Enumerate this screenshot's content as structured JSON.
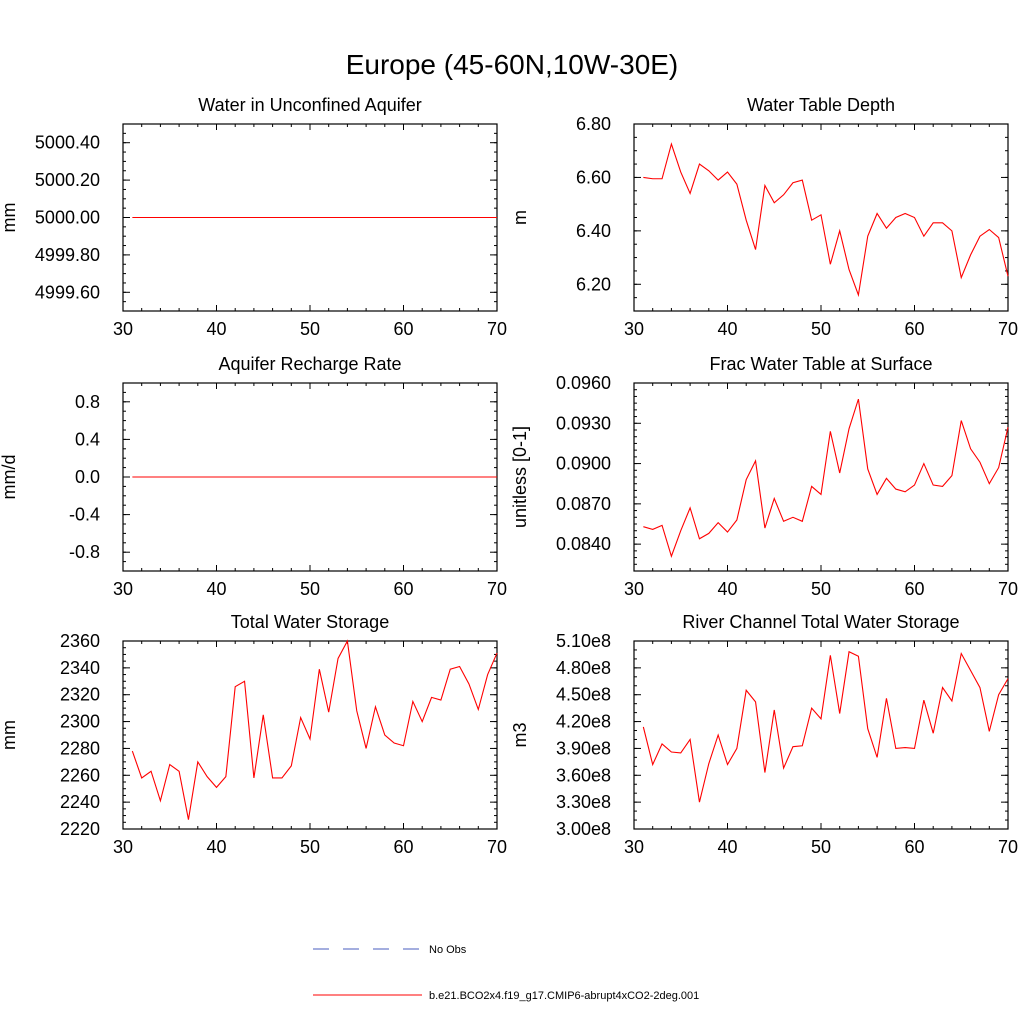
{
  "figure": {
    "title": "Europe (45-60N,10W-30E)",
    "colors": {
      "model": "#ff0000",
      "obs": "#4a5dbf",
      "axis": "#000000",
      "background": "#ffffff"
    }
  },
  "legend": {
    "placement": "bottom-center",
    "entries": [
      {
        "label": "No Obs",
        "style": "dashed",
        "color": "#4a5dbf"
      },
      {
        "label": "b.e21.BCO2x4.f19_g17.CMIP6-abrupt4xCO2-2deg.001",
        "style": "solid",
        "color": "#ff0000"
      }
    ]
  },
  "chart_data": [
    {
      "id": "aquifer",
      "type": "line",
      "title": "Water in Unconfined Aquifer",
      "xlabel": "",
      "ylabel": "mm",
      "xlim": [
        30,
        70
      ],
      "ylim": [
        4999.5,
        5000.5
      ],
      "xticks": [
        30,
        40,
        50,
        60,
        70
      ],
      "xtick_labels": [
        "30",
        "40",
        "50",
        "60",
        "70"
      ],
      "yticks": [
        4999.6,
        4999.8,
        5000.0,
        5000.2,
        5000.4
      ],
      "ytick_labels": [
        "4999.60",
        "4999.80",
        "5000.00",
        "5000.20",
        "5000.40"
      ],
      "yminor": 0.05,
      "x": [
        31,
        70
      ],
      "series": [
        {
          "name": "b.e21.BCO2x4.f19_g17.CMIP6-abrupt4xCO2-2deg.001",
          "values": [
            5000.0,
            5000.0
          ]
        }
      ]
    },
    {
      "id": "wtd",
      "type": "line",
      "title": "Water Table Depth",
      "xlabel": "",
      "ylabel": "m",
      "xlim": [
        30,
        70
      ],
      "ylim": [
        6.1,
        6.8
      ],
      "xticks": [
        30,
        40,
        50,
        60,
        70
      ],
      "xtick_labels": [
        "30",
        "40",
        "50",
        "60",
        "70"
      ],
      "yticks": [
        6.2,
        6.4,
        6.6,
        6.8
      ],
      "ytick_labels": [
        "6.20",
        "6.40",
        "6.60",
        "6.80"
      ],
      "yminor": 0.05,
      "x": [
        31,
        32,
        33,
        34,
        35,
        36,
        37,
        38,
        39,
        40,
        41,
        42,
        43,
        44,
        45,
        46,
        47,
        48,
        49,
        50,
        51,
        52,
        53,
        54,
        55,
        56,
        57,
        58,
        59,
        60,
        61,
        62,
        63,
        64,
        65,
        66,
        67,
        68,
        69,
        70
      ],
      "series": [
        {
          "name": "b.e21.BCO2x4.f19_g17.CMIP6-abrupt4xCO2-2deg.001",
          "values": [
            6.6,
            6.595,
            6.595,
            6.725,
            6.62,
            6.54,
            6.65,
            6.625,
            6.59,
            6.62,
            6.575,
            6.44,
            6.33,
            6.57,
            6.505,
            6.535,
            6.58,
            6.59,
            6.44,
            6.46,
            6.275,
            6.4,
            6.255,
            6.16,
            6.38,
            6.465,
            6.41,
            6.45,
            6.465,
            6.45,
            6.38,
            6.43,
            6.43,
            6.4,
            6.225,
            6.31,
            6.38,
            6.405,
            6.375,
            6.23
          ]
        }
      ]
    },
    {
      "id": "recharge",
      "type": "line",
      "title": "Aquifer Recharge Rate",
      "xlabel": "",
      "ylabel": "mm/d",
      "xlim": [
        30,
        70
      ],
      "ylim": [
        -1.0,
        1.0
      ],
      "xticks": [
        30,
        40,
        50,
        60,
        70
      ],
      "xtick_labels": [
        "30",
        "40",
        "50",
        "60",
        "70"
      ],
      "yticks": [
        -0.8,
        -0.4,
        0.0,
        0.4,
        0.8
      ],
      "ytick_labels": [
        "-0.8",
        "-0.4",
        "0.0",
        "0.4",
        "0.8"
      ],
      "yminor": 0.1,
      "x": [
        31,
        70
      ],
      "series": [
        {
          "name": "b.e21.BCO2x4.f19_g17.CMIP6-abrupt4xCO2-2deg.001",
          "values": [
            0.0,
            0.0
          ]
        }
      ]
    },
    {
      "id": "frac",
      "type": "line",
      "title": "Frac Water Table at Surface",
      "xlabel": "",
      "ylabel": "unitless [0-1]",
      "xlim": [
        30,
        70
      ],
      "ylim": [
        0.082,
        0.096
      ],
      "xticks": [
        30,
        40,
        50,
        60,
        70
      ],
      "xtick_labels": [
        "30",
        "40",
        "50",
        "60",
        "70"
      ],
      "yticks": [
        0.084,
        0.087,
        0.09,
        0.093,
        0.096
      ],
      "ytick_labels": [
        "0.0840",
        "0.0870",
        "0.0900",
        "0.0930",
        "0.0960"
      ],
      "yminor": 0.0005,
      "x": [
        31,
        32,
        33,
        34,
        35,
        36,
        37,
        38,
        39,
        40,
        41,
        42,
        43,
        44,
        45,
        46,
        47,
        48,
        49,
        50,
        51,
        52,
        53,
        54,
        55,
        56,
        57,
        58,
        59,
        60,
        61,
        62,
        63,
        64,
        65,
        66,
        67,
        68,
        69,
        70
      ],
      "series": [
        {
          "name": "b.e21.BCO2x4.f19_g17.CMIP6-abrupt4xCO2-2deg.001",
          "values": [
            0.0853,
            0.0851,
            0.0854,
            0.0831,
            0.085,
            0.0867,
            0.0844,
            0.0848,
            0.0856,
            0.0849,
            0.0858,
            0.0888,
            0.0902,
            0.0852,
            0.0874,
            0.0857,
            0.086,
            0.0857,
            0.0883,
            0.0877,
            0.0924,
            0.0893,
            0.0926,
            0.0948,
            0.0896,
            0.0877,
            0.0889,
            0.0881,
            0.0879,
            0.0884,
            0.09,
            0.0884,
            0.0883,
            0.0891,
            0.0932,
            0.0911,
            0.0901,
            0.0885,
            0.0897,
            0.0927
          ]
        }
      ]
    },
    {
      "id": "tws",
      "type": "line",
      "title": "Total Water Storage",
      "xlabel": "",
      "ylabel": "mm",
      "xlim": [
        30,
        70
      ],
      "ylim": [
        2220,
        2360
      ],
      "xticks": [
        30,
        40,
        50,
        60,
        70
      ],
      "xtick_labels": [
        "30",
        "40",
        "50",
        "60",
        "70"
      ],
      "yticks": [
        2220,
        2240,
        2260,
        2280,
        2300,
        2320,
        2340,
        2360
      ],
      "ytick_labels": [
        "2220",
        "2240",
        "2260",
        "2280",
        "2300",
        "2320",
        "2340",
        "2360"
      ],
      "yminor": 5,
      "x": [
        31,
        32,
        33,
        34,
        35,
        36,
        37,
        38,
        39,
        40,
        41,
        42,
        43,
        44,
        45,
        46,
        47,
        48,
        49,
        50,
        51,
        52,
        53,
        54,
        55,
        56,
        57,
        58,
        59,
        60,
        61,
        62,
        63,
        64,
        65,
        66,
        67,
        68,
        69,
        70
      ],
      "series": [
        {
          "name": "b.e21.BCO2x4.f19_g17.CMIP6-abrupt4xCO2-2deg.001",
          "values": [
            2278,
            2258,
            2263,
            2241,
            2268,
            2263,
            2227,
            2270,
            2259,
            2251,
            2259,
            2326,
            2330,
            2258,
            2305,
            2258,
            2258,
            2267,
            2303,
            2287,
            2339,
            2307,
            2347,
            2360,
            2308,
            2280,
            2311,
            2290,
            2284,
            2282,
            2315,
            2300,
            2318,
            2316,
            2339,
            2341,
            2328,
            2309,
            2335,
            2351
          ]
        }
      ]
    },
    {
      "id": "river",
      "type": "line",
      "title": "River Channel Total Water Storage",
      "xlabel": "",
      "ylabel": "m3",
      "xlim": [
        30,
        70
      ],
      "ylim": [
        300000000.0,
        510000000.0
      ],
      "xticks": [
        30,
        40,
        50,
        60,
        70
      ],
      "xtick_labels": [
        "30",
        "40",
        "50",
        "60",
        "70"
      ],
      "yticks": [
        300000000.0,
        330000000.0,
        360000000.0,
        390000000.0,
        420000000.0,
        450000000.0,
        480000000.0,
        510000000.0
      ],
      "ytick_labels": [
        "3.00e8",
        "3.30e8",
        "3.60e8",
        "3.90e8",
        "4.20e8",
        "4.50e8",
        "4.80e8",
        "5.10e8"
      ],
      "yminor": 10000000.0,
      "x": [
        31,
        32,
        33,
        34,
        35,
        36,
        37,
        38,
        39,
        40,
        41,
        42,
        43,
        44,
        45,
        46,
        47,
        48,
        49,
        50,
        51,
        52,
        53,
        54,
        55,
        56,
        57,
        58,
        59,
        60,
        61,
        62,
        63,
        64,
        65,
        66,
        67,
        68,
        69,
        70
      ],
      "series": [
        {
          "name": "b.e21.BCO2x4.f19_g17.CMIP6-abrupt4xCO2-2deg.001",
          "values": [
            414000000.0,
            372000000.0,
            395000000.0,
            386000000.0,
            385000000.0,
            400000000.0,
            330000000.0,
            373000000.0,
            405000000.0,
            372000000.0,
            390000000.0,
            455000000.0,
            442000000.0,
            363000000.0,
            433000000.0,
            368000000.0,
            392000000.0,
            393000000.0,
            435000000.0,
            423000000.0,
            494000000.0,
            429000000.0,
            498000000.0,
            493000000.0,
            412000000.0,
            380000000.0,
            446000000.0,
            390000000.0,
            391000000.0,
            390000000.0,
            444000000.0,
            407000000.0,
            458000000.0,
            443000000.0,
            496000000.0,
            477000000.0,
            458000000.0,
            409000000.0,
            450000000.0,
            468000000.0
          ]
        }
      ]
    }
  ]
}
